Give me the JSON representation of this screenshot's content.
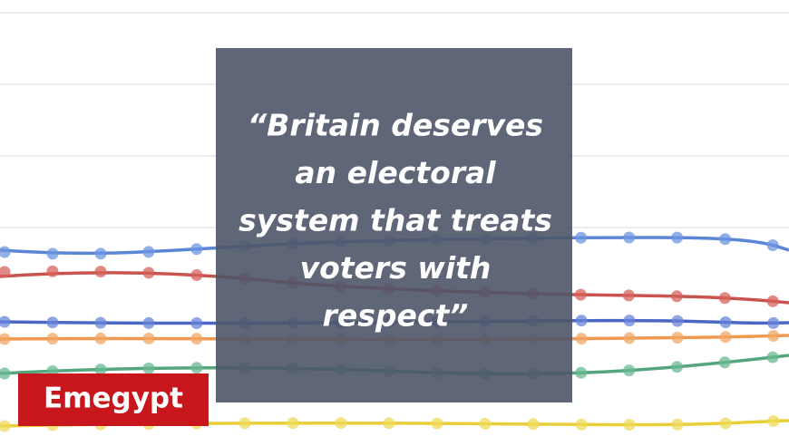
{
  "quote": {
    "lines": [
      "“Britain deserves",
      "an electoral",
      "system that treats",
      "voters with",
      "respect”"
    ]
  },
  "logo": {
    "text": "Emegypt"
  }
}
